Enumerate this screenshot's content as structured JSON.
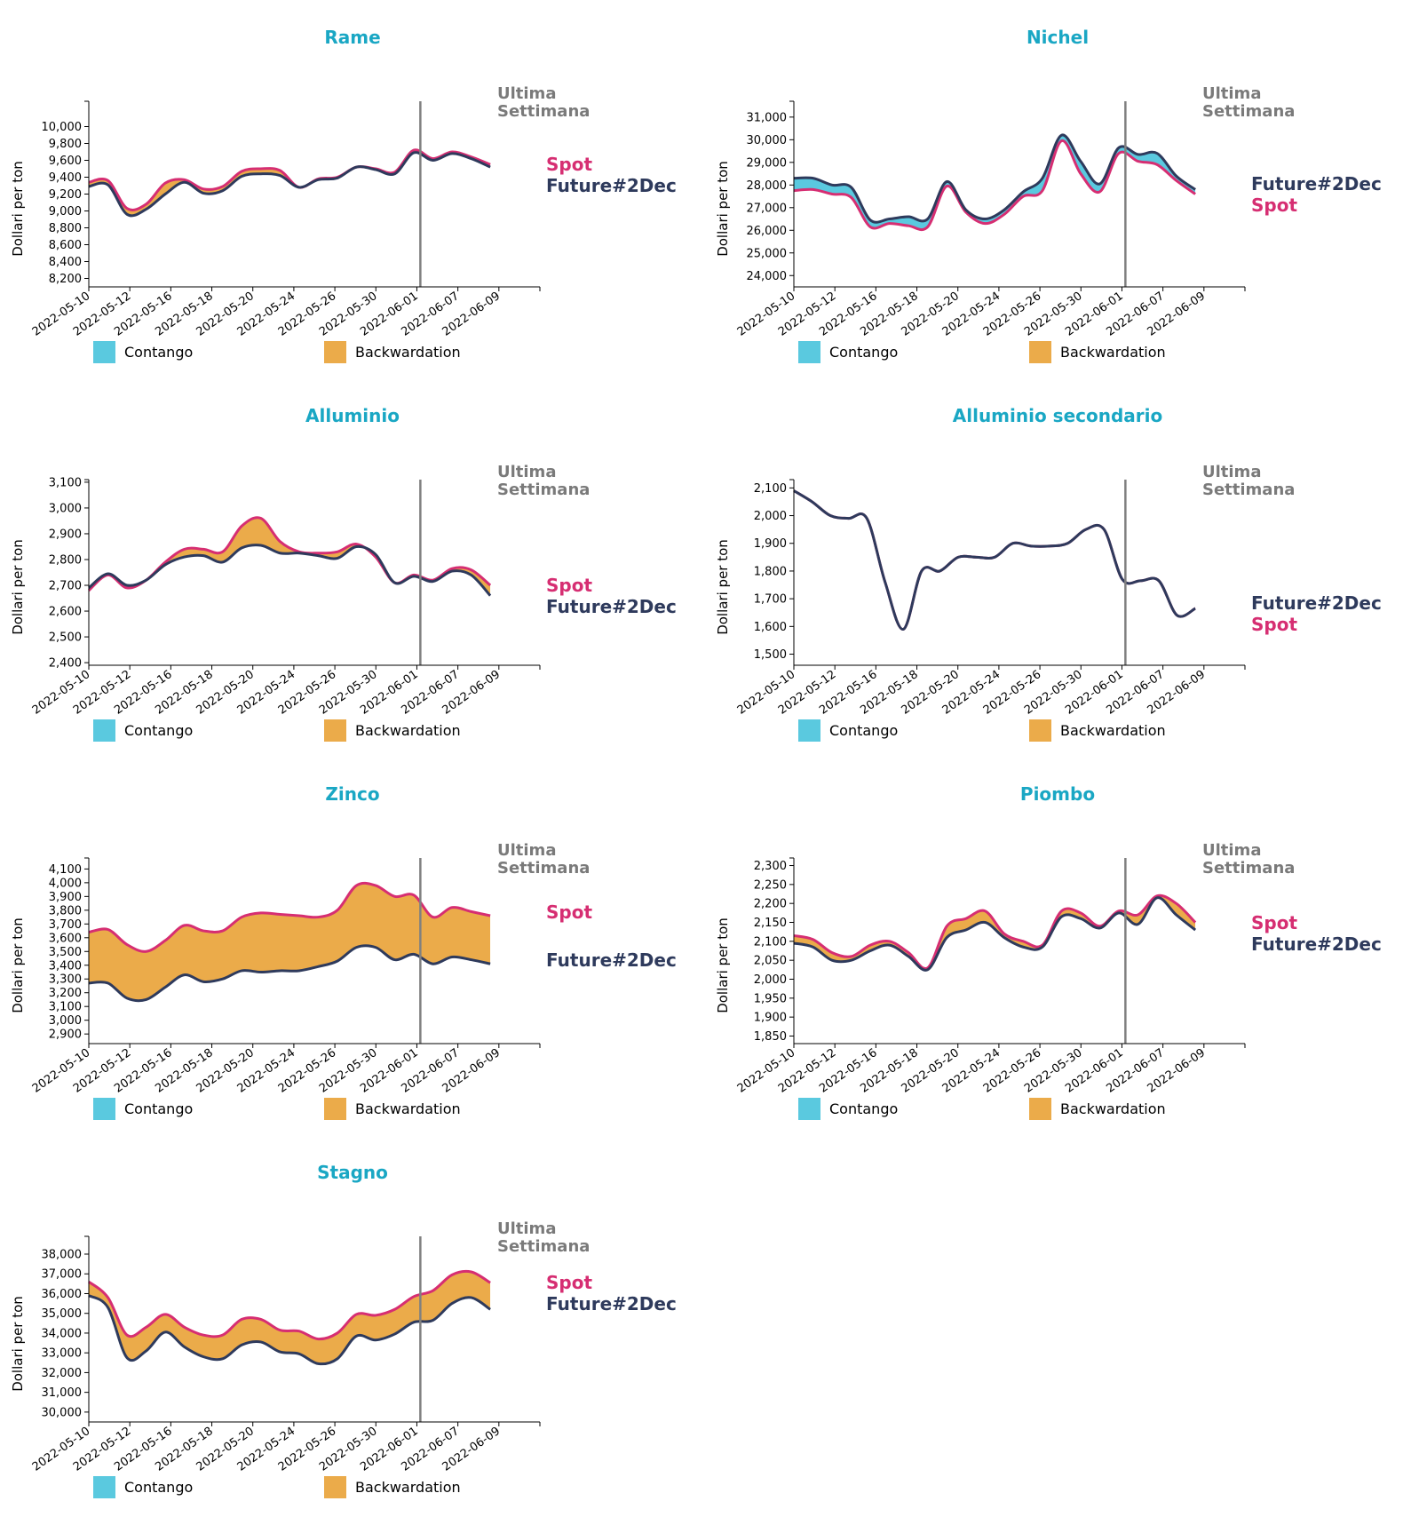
{
  "colors": {
    "title": "#1aa7c4",
    "spot": "#d62e72",
    "future": "#2e3a5c",
    "contango": "#5ac9df",
    "backwardation": "#ebab4a",
    "ultima": "#7a7a7a",
    "vline": "#808080"
  },
  "common": {
    "ylabel": "Dollari per ton",
    "ultima_line1": "Ultima",
    "ultima_line2": "Settimana",
    "spot_label": "Spot",
    "future_label": "Future#2Dec",
    "legend_contango": "Contango",
    "legend_backwardation": "Backwardation",
    "dates": [
      "2022-05-10",
      "2022-05-12",
      "2022-05-16",
      "2022-05-18",
      "2022-05-20",
      "2022-05-24",
      "2022-05-26",
      "2022-05-30",
      "2022-06-01",
      "2022-06-07",
      "2022-06-09"
    ]
  },
  "chart_data": [
    {
      "type": "area",
      "title": "Rame",
      "ylabel": "Dollari per ton",
      "ylim": [
        8100,
        10300
      ],
      "yticks": [
        8200,
        8400,
        8600,
        8800,
        9000,
        9200,
        9400,
        9600,
        9800,
        10000
      ],
      "spot_label_order": "spot_first",
      "series": [
        {
          "name": "Spot",
          "values": [
            9340,
            9360,
            9030,
            9080,
            9330,
            9370,
            9260,
            9290,
            9470,
            9500,
            9480,
            9280,
            9380,
            9400,
            9520,
            9500,
            9460,
            9720,
            9620,
            9700,
            9640,
            9550
          ]
        },
        {
          "name": "Future#2Dec",
          "values": [
            9290,
            9310,
            8960,
            9020,
            9200,
            9340,
            9210,
            9240,
            9410,
            9440,
            9420,
            9280,
            9370,
            9390,
            9520,
            9490,
            9440,
            9690,
            9600,
            9680,
            9620,
            9520
          ]
        }
      ]
    },
    {
      "type": "area",
      "title": "Nichel",
      "ylabel": "Dollari per ton",
      "ylim": [
        23500,
        31700
      ],
      "yticks": [
        24000,
        25000,
        26000,
        27000,
        28000,
        29000,
        30000,
        31000
      ],
      "spot_label_order": "future_first",
      "series": [
        {
          "name": "Spot",
          "values": [
            27750,
            27800,
            27600,
            27450,
            26150,
            26300,
            26200,
            26150,
            27950,
            26800,
            26300,
            26700,
            27500,
            27750,
            29950,
            28500,
            27700,
            29400,
            29050,
            28900,
            28200,
            27600
          ]
        },
        {
          "name": "Future#2Dec",
          "values": [
            28300,
            28300,
            28000,
            27900,
            26450,
            26500,
            26600,
            26500,
            28150,
            26900,
            26500,
            26900,
            27700,
            28300,
            30200,
            29050,
            28050,
            29650,
            29350,
            29400,
            28400,
            27800
          ]
        }
      ]
    },
    {
      "type": "area",
      "title": "Alluminio",
      "ylabel": "Dollari per ton",
      "ylim": [
        2390,
        3110
      ],
      "yticks": [
        2400,
        2500,
        2600,
        2700,
        2800,
        2900,
        3000,
        3100
      ],
      "spot_label_order": "spot_first",
      "series": [
        {
          "name": "Spot",
          "values": [
            2680,
            2740,
            2690,
            2720,
            2790,
            2840,
            2840,
            2830,
            2930,
            2960,
            2870,
            2830,
            2825,
            2830,
            2860,
            2810,
            2710,
            2740,
            2720,
            2765,
            2760,
            2700
          ]
        },
        {
          "name": "Future#2Dec",
          "values": [
            2690,
            2745,
            2700,
            2720,
            2780,
            2810,
            2815,
            2790,
            2845,
            2855,
            2825,
            2825,
            2815,
            2805,
            2850,
            2820,
            2710,
            2735,
            2715,
            2755,
            2740,
            2660
          ]
        }
      ]
    },
    {
      "type": "area",
      "title": "Alluminio secondario",
      "ylabel": "Dollari per ton",
      "ylim": [
        1460,
        2130
      ],
      "yticks": [
        1500,
        1600,
        1700,
        1800,
        1900,
        2000,
        2100
      ],
      "spot_label_order": "future_first",
      "series": [
        {
          "name": "Spot",
          "values": [
            2090,
            2050,
            2000,
            1990,
            1990,
            1760,
            1590,
            1800,
            1800,
            1850,
            1850,
            1850,
            1900,
            1890,
            1890,
            1900,
            1950,
            1950,
            1770,
            1765,
            1765,
            1640,
            1665
          ]
        },
        {
          "name": "Future#2Dec",
          "values": [
            2090,
            2050,
            2000,
            1990,
            1990,
            1760,
            1590,
            1800,
            1800,
            1850,
            1850,
            1850,
            1900,
            1890,
            1890,
            1900,
            1950,
            1950,
            1770,
            1765,
            1765,
            1640,
            1665
          ]
        }
      ]
    },
    {
      "type": "area",
      "title": "Zinco",
      "ylabel": "Dollari per ton",
      "ylim": [
        2830,
        4180
      ],
      "yticks": [
        2900,
        3000,
        3100,
        3200,
        3300,
        3400,
        3500,
        3600,
        3700,
        3800,
        3900,
        4000,
        4100
      ],
      "spot_label_order": "spot_first",
      "series": [
        {
          "name": "Spot",
          "values": [
            3640,
            3660,
            3550,
            3500,
            3580,
            3690,
            3650,
            3650,
            3750,
            3780,
            3770,
            3760,
            3750,
            3800,
            3980,
            3980,
            3900,
            3910,
            3750,
            3820,
            3790,
            3760
          ]
        },
        {
          "name": "Future#2Dec",
          "values": [
            3270,
            3270,
            3160,
            3150,
            3240,
            3330,
            3280,
            3300,
            3360,
            3350,
            3360,
            3360,
            3390,
            3430,
            3530,
            3530,
            3440,
            3480,
            3410,
            3460,
            3440,
            3410
          ]
        }
      ]
    },
    {
      "type": "area",
      "title": "Piombo",
      "ylabel": "Dollari per ton",
      "ylim": [
        1830,
        2320
      ],
      "yticks": [
        1850,
        1900,
        1950,
        2000,
        2050,
        2100,
        2150,
        2200,
        2250,
        2300
      ],
      "spot_label_order": "spot_first",
      "series": [
        {
          "name": "Spot",
          "values": [
            2115,
            2105,
            2070,
            2060,
            2090,
            2100,
            2070,
            2030,
            2140,
            2160,
            2180,
            2120,
            2100,
            2090,
            2180,
            2175,
            2140,
            2180,
            2170,
            2220,
            2200,
            2150
          ]
        },
        {
          "name": "Future#2Dec",
          "values": [
            2095,
            2085,
            2050,
            2050,
            2075,
            2090,
            2060,
            2025,
            2110,
            2130,
            2150,
            2110,
            2085,
            2085,
            2165,
            2160,
            2135,
            2175,
            2145,
            2215,
            2170,
            2130
          ]
        }
      ]
    },
    {
      "type": "area",
      "title": "Stagno",
      "ylabel": "Dollari per ton",
      "ylim": [
        29500,
        38900
      ],
      "yticks": [
        30000,
        31000,
        32000,
        33000,
        34000,
        35000,
        36000,
        37000,
        38000
      ],
      "spot_label_order": "spot_first",
      "series": [
        {
          "name": "Spot",
          "values": [
            36600,
            35800,
            33900,
            34300,
            34950,
            34300,
            33900,
            33900,
            34700,
            34700,
            34150,
            34100,
            33700,
            34000,
            34950,
            34900,
            35200,
            35850,
            36150,
            36950,
            37100,
            36550
          ]
        },
        {
          "name": "Future#2Dec",
          "values": [
            35900,
            35300,
            32750,
            33100,
            34050,
            33300,
            32800,
            32700,
            33400,
            33550,
            33050,
            32950,
            32450,
            32700,
            33850,
            33650,
            33950,
            34550,
            34650,
            35500,
            35800,
            35200
          ]
        }
      ]
    }
  ]
}
